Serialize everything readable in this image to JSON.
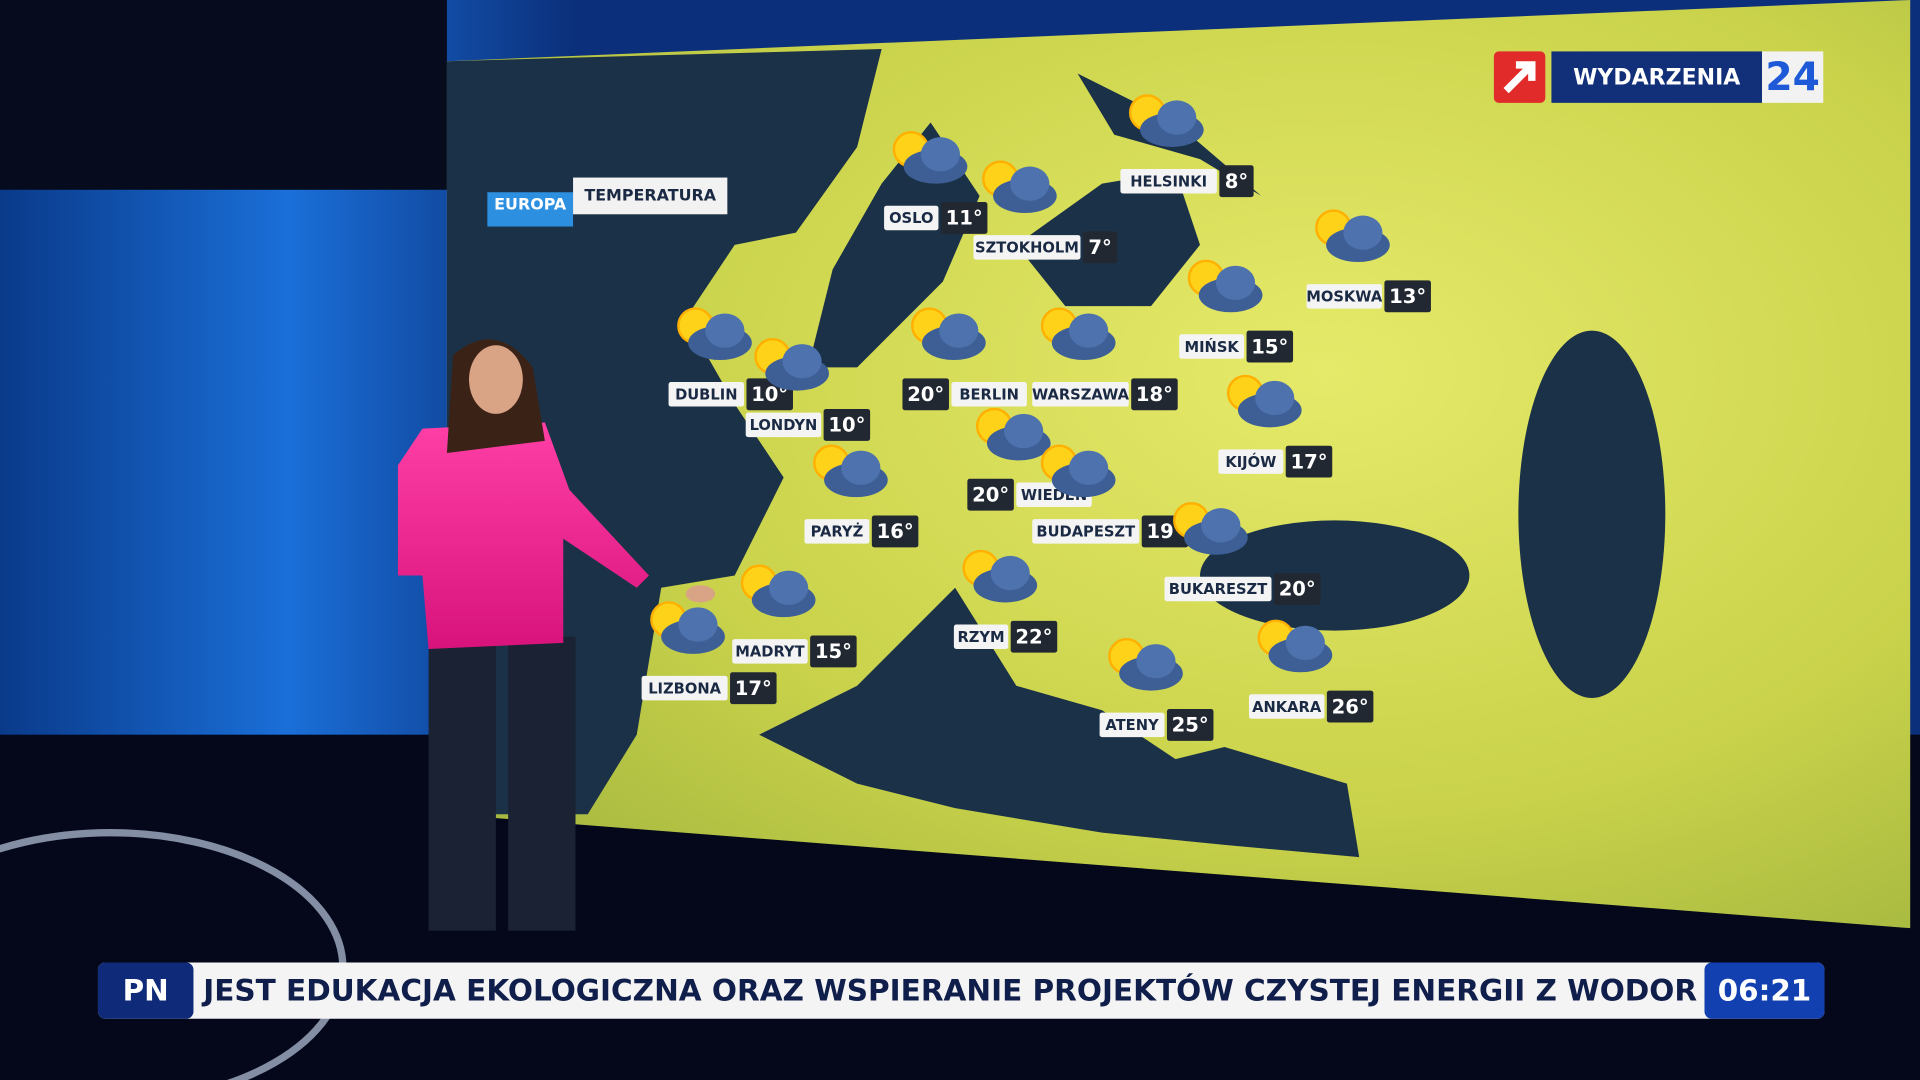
{
  "logo": {
    "name": "WYDARZENIA",
    "number": "24"
  },
  "header": {
    "region": "EUROPA",
    "label": "TEMPERATURA"
  },
  "cities": [
    {
      "name": "OSLO",
      "temp": "11°"
    },
    {
      "name": "SZTOKHOLM",
      "temp": "7°"
    },
    {
      "name": "HELSINKI",
      "temp": "8°"
    },
    {
      "name": "MOSKWA",
      "temp": "13°"
    },
    {
      "name": "MIŃSK",
      "temp": "15°"
    },
    {
      "name": "DUBLIN",
      "temp": "10°"
    },
    {
      "name": "LONDYN",
      "temp": "10°"
    },
    {
      "name": "BERLIN",
      "temp": "20°"
    },
    {
      "name": "WARSZAWA",
      "temp": "18°"
    },
    {
      "name": "KIJÓW",
      "temp": "17°"
    },
    {
      "name": "PARYŻ",
      "temp": "16°"
    },
    {
      "name": "WIEDEŃ",
      "temp": "20°"
    },
    {
      "name": "BUDAPESZT",
      "temp": "19°"
    },
    {
      "name": "BUKARESZT",
      "temp": "20°"
    },
    {
      "name": "RZYM",
      "temp": "22°"
    },
    {
      "name": "MADRYT",
      "temp": "15°"
    },
    {
      "name": "LIZBONA",
      "temp": "17°"
    },
    {
      "name": "ATENY",
      "temp": "25°"
    },
    {
      "name": "ANKARA",
      "temp": "26°"
    }
  ],
  "ticker": {
    "tag": "PN",
    "text": "JEST EDUKACJA EKOLOGICZNA ORAZ WSPIERANIE PROJEKTÓW CZYSTEJ ENERGII Z WODOR",
    "time": "06:21"
  }
}
